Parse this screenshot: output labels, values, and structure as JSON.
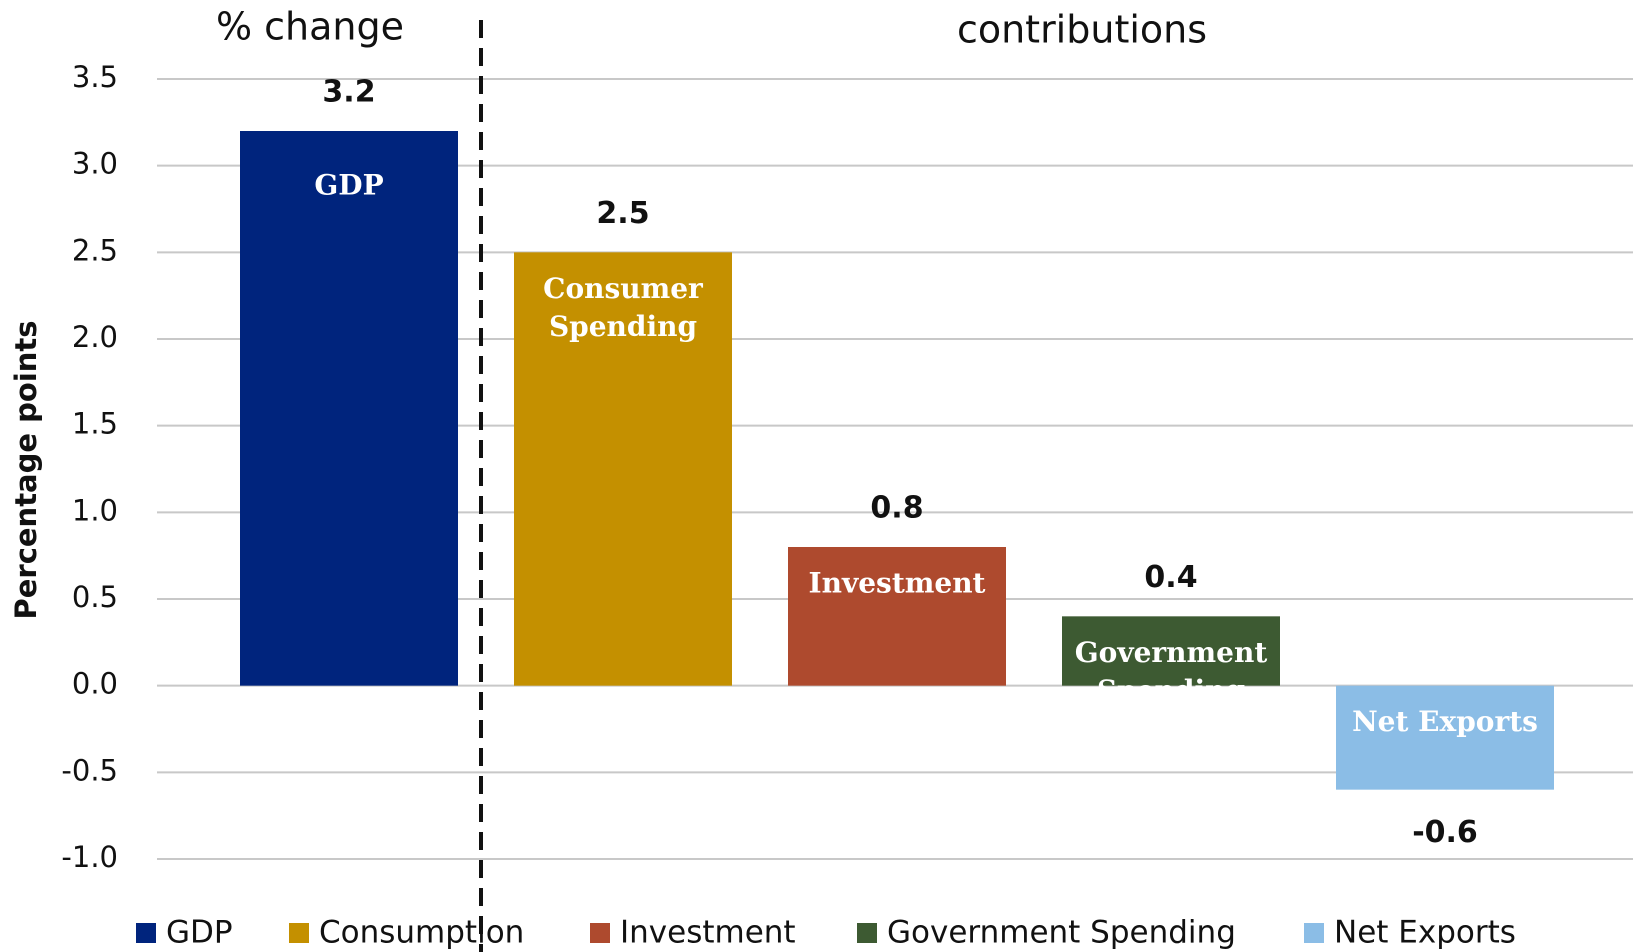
{
  "chart_data": {
    "type": "bar",
    "headers": [
      "% change",
      "contributions"
    ],
    "ylabel": "Percentage points",
    "series": [
      {
        "name": "GDP",
        "color": "#00247d",
        "values": [
          3.2
        ],
        "bar_label": [
          "GDP"
        ]
      },
      {
        "name": "Consumption",
        "color": "#c49000",
        "values": [
          2.5
        ],
        "bar_label": [
          "Consumer",
          "Spending"
        ]
      },
      {
        "name": "Investment",
        "color": "#ae4a2e",
        "values": [
          0.8
        ],
        "bar_label": [
          "Investment"
        ]
      },
      {
        "name": "Government Spending",
        "color": "#3d5a32",
        "values": [
          0.4
        ],
        "bar_label": [
          "Government",
          "Spending"
        ]
      },
      {
        "name": "Net Exports",
        "color": "#8bbde6",
        "values": [
          -0.6
        ],
        "bar_label": [
          "Net Exports"
        ]
      }
    ],
    "ylim": [
      -1.0,
      3.5
    ],
    "yticks": [
      {
        "value": -1.0,
        "label": "-1.0"
      },
      -0.5,
      {
        "value": 0,
        "label": "0.0"
      },
      0.5,
      {
        "value": 1.0,
        "label": "1.0"
      },
      1.5,
      {
        "value": 2.0,
        "label": "2.0"
      },
      2.5,
      {
        "value": 3.0,
        "label": "3.0"
      },
      3.5
    ],
    "grid": true
  }
}
